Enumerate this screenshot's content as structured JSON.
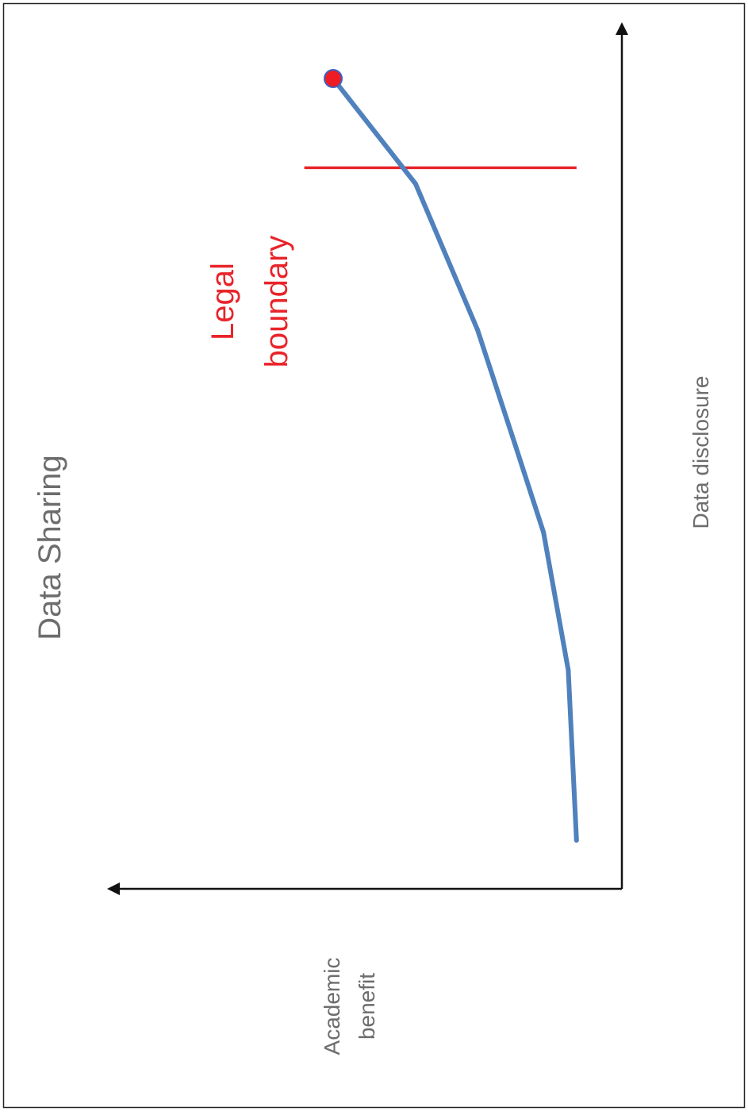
{
  "chart_data": {
    "type": "line",
    "title": "Data Sharing",
    "xlabel": "Data disclosure",
    "ylabel_lines": [
      "Academic",
      "benefit"
    ],
    "boundary_label_lines": [
      "Legal",
      "boundary"
    ],
    "series": [
      {
        "values": [
          [
            0.06,
            0.11
          ],
          [
            0.27,
            0.13
          ],
          [
            0.44,
            0.19
          ],
          [
            0.55,
            0.26
          ],
          [
            0.69,
            0.35
          ],
          [
            0.87,
            0.5
          ],
          [
            1.0,
            0.7
          ]
        ]
      }
    ],
    "end_marker": {
      "x": 1.0,
      "y": 0.7
    },
    "boundary": {
      "x": 0.89,
      "y_range": [
        0.11,
        0.77
      ]
    },
    "xlim": [
      0,
      1.05
    ],
    "ylim": [
      0,
      1
    ],
    "grid": false,
    "orientation": "rotated 90 degrees counter-clockwise",
    "colors": {
      "line": "#4f81bd",
      "boundary": "#e8242a",
      "marker": "#ee1c24",
      "marker_edge": "#3b62c4",
      "axis": "#111111",
      "text": "#6d6d6d"
    }
  }
}
